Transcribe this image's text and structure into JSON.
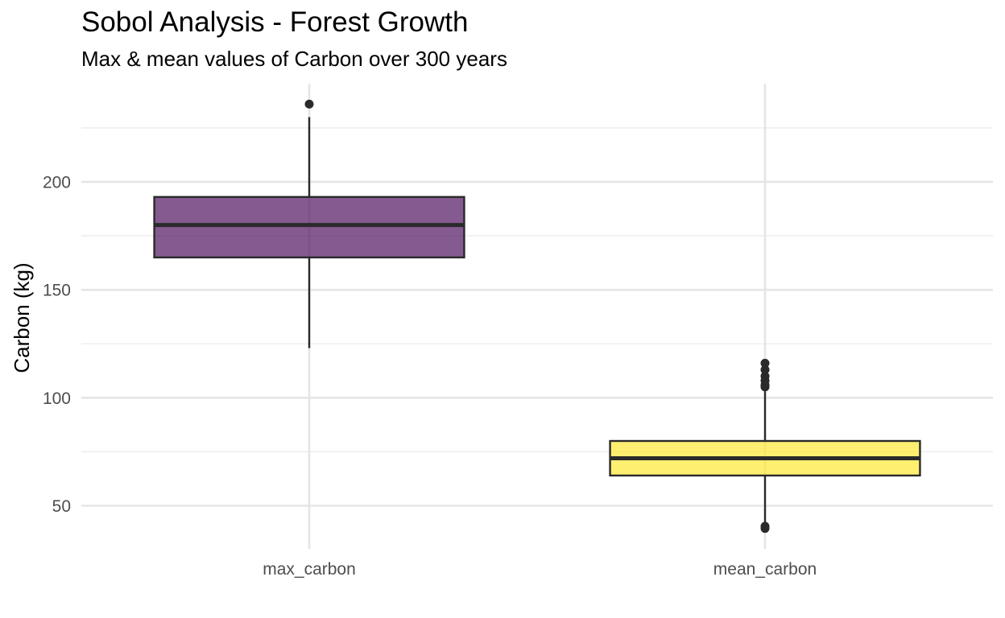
{
  "chart_data": {
    "type": "box",
    "title": "Sobol Analysis - Forest Growth",
    "subtitle": "Max & mean values of Carbon over 300 years",
    "xlabel": "",
    "ylabel": "Carbon (kg)",
    "ylim": [
      30,
      250
    ],
    "y_ticks": [
      50,
      100,
      150,
      200
    ],
    "grid": true,
    "legend": "none",
    "categories": [
      "max_carbon",
      "mean_carbon"
    ],
    "boxes": [
      {
        "category": "max_carbon",
        "whisker_low": 123,
        "q1": 165,
        "median": 180,
        "q3": 193,
        "whisker_high": 230,
        "outliers": [
          236
        ],
        "fill": "#440154",
        "opacity": 0.65
      },
      {
        "category": "mean_carbon",
        "whisker_low": 42,
        "q1": 64,
        "median": 72,
        "q3": 80,
        "whisker_high": 103,
        "outliers": [
          105,
          106,
          108,
          110,
          113,
          116,
          39.5,
          40.5
        ],
        "fill": "#FDE725",
        "opacity": 0.65
      }
    ]
  }
}
